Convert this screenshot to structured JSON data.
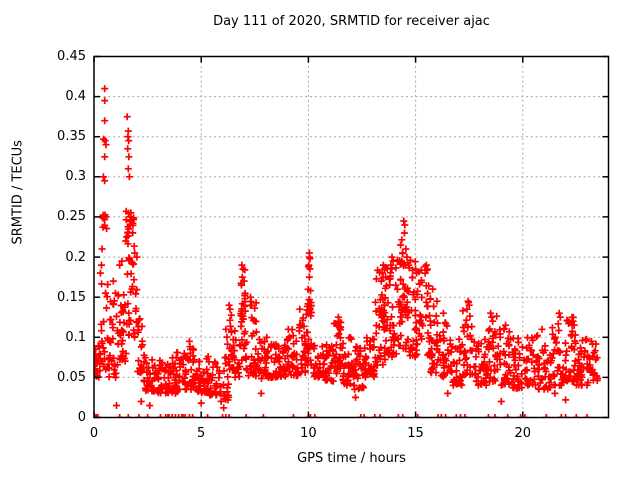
{
  "figure": {
    "background": "#ffffff",
    "text_color": "#000000"
  },
  "chart_data": {
    "type": "scatter",
    "title": "Day 111 of 2020, SRMTID for receiver ajac",
    "xlabel": "GPS time / hours",
    "ylabel": "SRMTID / TECUs",
    "xlim": [
      0,
      24
    ],
    "ylim": [
      0,
      0.45
    ],
    "xticks": [
      [
        "0",
        0
      ],
      [
        "5",
        5
      ],
      [
        "10",
        10
      ],
      [
        "15",
        15
      ],
      [
        "20",
        20
      ]
    ],
    "yticks": [
      [
        "0",
        0
      ],
      [
        "0.05",
        0.05
      ],
      [
        "0.1",
        0.1
      ],
      [
        "0.15",
        0.15
      ],
      [
        "0.2",
        0.2
      ],
      [
        "0.25",
        0.25
      ],
      [
        "0.3",
        0.3
      ],
      [
        "0.35",
        0.35
      ],
      [
        "0.4",
        0.4
      ],
      [
        "0.45",
        0.45
      ]
    ],
    "grid": true,
    "grid_color": "#a8a8a8",
    "marker": "plus",
    "marker_color": "#ff0000",
    "x_data_range": [
      0.05,
      23.5
    ],
    "cluster_bands": [
      [
        0.0,
        0.3,
        0.05,
        0.095,
        18
      ],
      [
        0.05,
        0.2,
        0.055,
        0.08,
        8
      ],
      [
        0.3,
        0.7,
        0.06,
        0.17,
        22
      ],
      [
        0.35,
        0.65,
        0.23,
        0.26,
        6
      ],
      [
        0.7,
        1.1,
        0.05,
        0.155,
        26
      ],
      [
        1.05,
        1.45,
        0.105,
        0.165,
        16
      ],
      [
        1.1,
        1.5,
        0.07,
        0.14,
        18
      ],
      [
        1.5,
        2.0,
        0.1,
        0.2,
        26
      ],
      [
        1.5,
        1.95,
        0.195,
        0.255,
        16
      ],
      [
        2.0,
        2.3,
        0.055,
        0.13,
        20
      ],
      [
        2.3,
        2.8,
        0.033,
        0.08,
        32
      ],
      [
        2.8,
        3.5,
        0.03,
        0.072,
        40
      ],
      [
        3.5,
        4.2,
        0.03,
        0.082,
        44
      ],
      [
        4.2,
        4.8,
        0.035,
        0.09,
        40
      ],
      [
        4.8,
        5.4,
        0.03,
        0.076,
        40
      ],
      [
        5.4,
        5.9,
        0.028,
        0.07,
        30
      ],
      [
        5.9,
        6.3,
        0.02,
        0.06,
        16
      ],
      [
        6.1,
        6.5,
        0.06,
        0.132,
        22
      ],
      [
        6.5,
        6.8,
        0.05,
        0.11,
        18
      ],
      [
        6.8,
        7.1,
        0.07,
        0.155,
        24
      ],
      [
        6.85,
        7.05,
        0.12,
        0.185,
        8
      ],
      [
        7.1,
        7.6,
        0.05,
        0.145,
        32
      ],
      [
        7.6,
        8.3,
        0.048,
        0.1,
        44
      ],
      [
        8.3,
        9.0,
        0.05,
        0.095,
        44
      ],
      [
        9.0,
        9.5,
        0.052,
        0.11,
        34
      ],
      [
        9.5,
        9.9,
        0.055,
        0.13,
        28
      ],
      [
        9.9,
        10.2,
        0.065,
        0.15,
        20
      ],
      [
        9.98,
        10.12,
        0.08,
        0.2,
        10
      ],
      [
        10.2,
        10.7,
        0.05,
        0.1,
        30
      ],
      [
        10.7,
        11.2,
        0.045,
        0.092,
        34
      ],
      [
        11.2,
        11.6,
        0.055,
        0.125,
        28
      ],
      [
        11.6,
        12.1,
        0.04,
        0.1,
        34
      ],
      [
        12.1,
        12.6,
        0.035,
        0.09,
        34
      ],
      [
        12.6,
        13.1,
        0.05,
        0.1,
        34
      ],
      [
        13.1,
        13.6,
        0.065,
        0.185,
        36
      ],
      [
        13.3,
        13.7,
        0.12,
        0.19,
        12
      ],
      [
        13.6,
        14.1,
        0.075,
        0.195,
        36
      ],
      [
        14.1,
        14.7,
        0.085,
        0.235,
        40
      ],
      [
        14.2,
        14.65,
        0.13,
        0.23,
        14
      ],
      [
        14.7,
        15.2,
        0.075,
        0.2,
        36
      ],
      [
        15.2,
        15.7,
        0.075,
        0.19,
        32
      ],
      [
        15.7,
        16.2,
        0.055,
        0.145,
        32
      ],
      [
        16.2,
        16.7,
        0.05,
        0.12,
        28
      ],
      [
        16.7,
        17.2,
        0.04,
        0.1,
        28
      ],
      [
        17.2,
        17.7,
        0.05,
        0.145,
        28
      ],
      [
        17.7,
        18.3,
        0.04,
        0.1,
        34
      ],
      [
        18.3,
        18.9,
        0.045,
        0.128,
        34
      ],
      [
        18.9,
        19.5,
        0.04,
        0.115,
        34
      ],
      [
        19.5,
        20.1,
        0.035,
        0.1,
        34
      ],
      [
        20.1,
        20.7,
        0.04,
        0.105,
        34
      ],
      [
        20.7,
        21.3,
        0.035,
        0.1,
        34
      ],
      [
        21.3,
        21.9,
        0.04,
        0.118,
        34
      ],
      [
        21.9,
        22.5,
        0.045,
        0.125,
        38
      ],
      [
        22.5,
        23.1,
        0.04,
        0.1,
        38
      ],
      [
        23.1,
        23.5,
        0.045,
        0.095,
        22
      ]
    ],
    "outlier_points": [
      [
        0.5,
        0.41
      ],
      [
        0.5,
        0.395
      ],
      [
        0.5,
        0.37
      ],
      [
        0.45,
        0.347
      ],
      [
        0.52,
        0.345
      ],
      [
        0.56,
        0.34
      ],
      [
        0.5,
        0.325
      ],
      [
        0.44,
        0.3
      ],
      [
        0.5,
        0.295
      ],
      [
        0.42,
        0.25
      ],
      [
        0.5,
        0.247
      ],
      [
        0.55,
        0.25
      ],
      [
        0.38,
        0.21
      ],
      [
        0.35,
        0.19
      ],
      [
        0.3,
        0.18
      ],
      [
        1.55,
        0.375
      ],
      [
        1.6,
        0.357
      ],
      [
        1.58,
        0.35
      ],
      [
        1.62,
        0.345
      ],
      [
        1.57,
        0.335
      ],
      [
        1.63,
        0.325
      ],
      [
        1.6,
        0.31
      ],
      [
        1.65,
        0.3
      ],
      [
        1.5,
        0.257
      ],
      [
        1.7,
        0.25
      ],
      [
        1.72,
        0.255
      ],
      [
        1.75,
        0.245
      ],
      [
        1.68,
        0.24
      ],
      [
        1.62,
        0.235
      ],
      [
        1.58,
        0.23
      ],
      [
        1.52,
        0.225
      ],
      [
        1.48,
        0.22
      ],
      [
        1.9,
        0.205
      ],
      [
        2.0,
        0.2
      ],
      [
        1.3,
        0.195
      ],
      [
        1.2,
        0.19
      ],
      [
        0.9,
        0.17
      ],
      [
        1.0,
        0.155
      ],
      [
        4.45,
        0.095
      ],
      [
        6.3,
        0.14
      ],
      [
        6.35,
        0.135
      ],
      [
        6.9,
        0.19
      ],
      [
        6.95,
        0.185
      ],
      [
        6.92,
        0.175
      ],
      [
        7.0,
        0.17
      ],
      [
        6.88,
        0.165
      ],
      [
        7.05,
        0.155
      ],
      [
        7.3,
        0.15
      ],
      [
        7.35,
        0.14
      ],
      [
        9.6,
        0.135
      ],
      [
        10.05,
        0.205
      ],
      [
        10.05,
        0.2
      ],
      [
        10.08,
        0.198
      ],
      [
        10.02,
        0.19
      ],
      [
        10.05,
        0.175
      ],
      [
        10.1,
        0.158
      ],
      [
        10.05,
        0.147
      ],
      [
        11.4,
        0.125
      ],
      [
        11.42,
        0.12
      ],
      [
        11.38,
        0.115
      ],
      [
        13.5,
        0.19
      ],
      [
        13.55,
        0.185
      ],
      [
        13.45,
        0.18
      ],
      [
        13.6,
        0.175
      ],
      [
        13.4,
        0.17
      ],
      [
        13.9,
        0.2
      ],
      [
        13.95,
        0.195
      ],
      [
        13.85,
        0.19
      ],
      [
        14.45,
        0.245
      ],
      [
        14.5,
        0.24
      ],
      [
        14.48,
        0.23
      ],
      [
        14.3,
        0.215
      ],
      [
        14.55,
        0.21
      ],
      [
        14.4,
        0.205
      ],
      [
        14.6,
        0.2
      ],
      [
        14.35,
        0.195
      ],
      [
        14.52,
        0.19
      ],
      [
        15.0,
        0.185
      ],
      [
        15.05,
        0.18
      ],
      [
        15.5,
        0.19
      ],
      [
        15.55,
        0.185
      ],
      [
        15.45,
        0.18
      ],
      [
        15.8,
        0.16
      ],
      [
        16.0,
        0.145
      ],
      [
        16.3,
        0.13
      ],
      [
        17.45,
        0.145
      ],
      [
        17.5,
        0.14
      ],
      [
        17.4,
        0.135
      ],
      [
        18.5,
        0.13
      ],
      [
        18.55,
        0.125
      ],
      [
        18.6,
        0.12
      ],
      [
        19.2,
        0.115
      ],
      [
        20.9,
        0.11
      ],
      [
        21.7,
        0.13
      ],
      [
        21.75,
        0.125
      ],
      [
        22.3,
        0.125
      ],
      [
        22.35,
        0.12
      ],
      [
        22.4,
        0.115
      ],
      [
        23.2,
        0.095
      ],
      [
        1.05,
        0.015
      ],
      [
        2.2,
        0.02
      ],
      [
        2.6,
        0.015
      ],
      [
        5.0,
        0.018
      ],
      [
        6.05,
        0.012
      ],
      [
        7.8,
        0.03
      ],
      [
        12.2,
        0.025
      ],
      [
        16.5,
        0.03
      ],
      [
        19.0,
        0.02
      ],
      [
        21.5,
        0.03
      ],
      [
        22.0,
        0.022
      ]
    ],
    "zero_points": [
      0.07,
      0.12,
      0.18,
      1.2,
      1.6,
      2.1,
      2.5,
      3.1,
      3.35,
      3.45,
      3.5,
      3.65,
      3.8,
      3.95,
      4.1,
      4.15,
      4.25,
      4.45,
      4.6,
      5.3,
      6.0,
      6.15,
      6.3,
      7.1,
      7.9,
      9.3,
      10.0,
      10.1,
      10.3,
      12.45,
      12.6,
      13.1,
      13.35,
      14.2,
      14.4,
      15.1,
      16.05,
      16.2,
      16.4,
      16.9,
      17.1,
      17.3,
      18.4,
      18.7,
      19.3,
      19.9,
      20.1,
      21.1,
      21.8,
      22.0,
      22.5,
      23.0
    ]
  }
}
